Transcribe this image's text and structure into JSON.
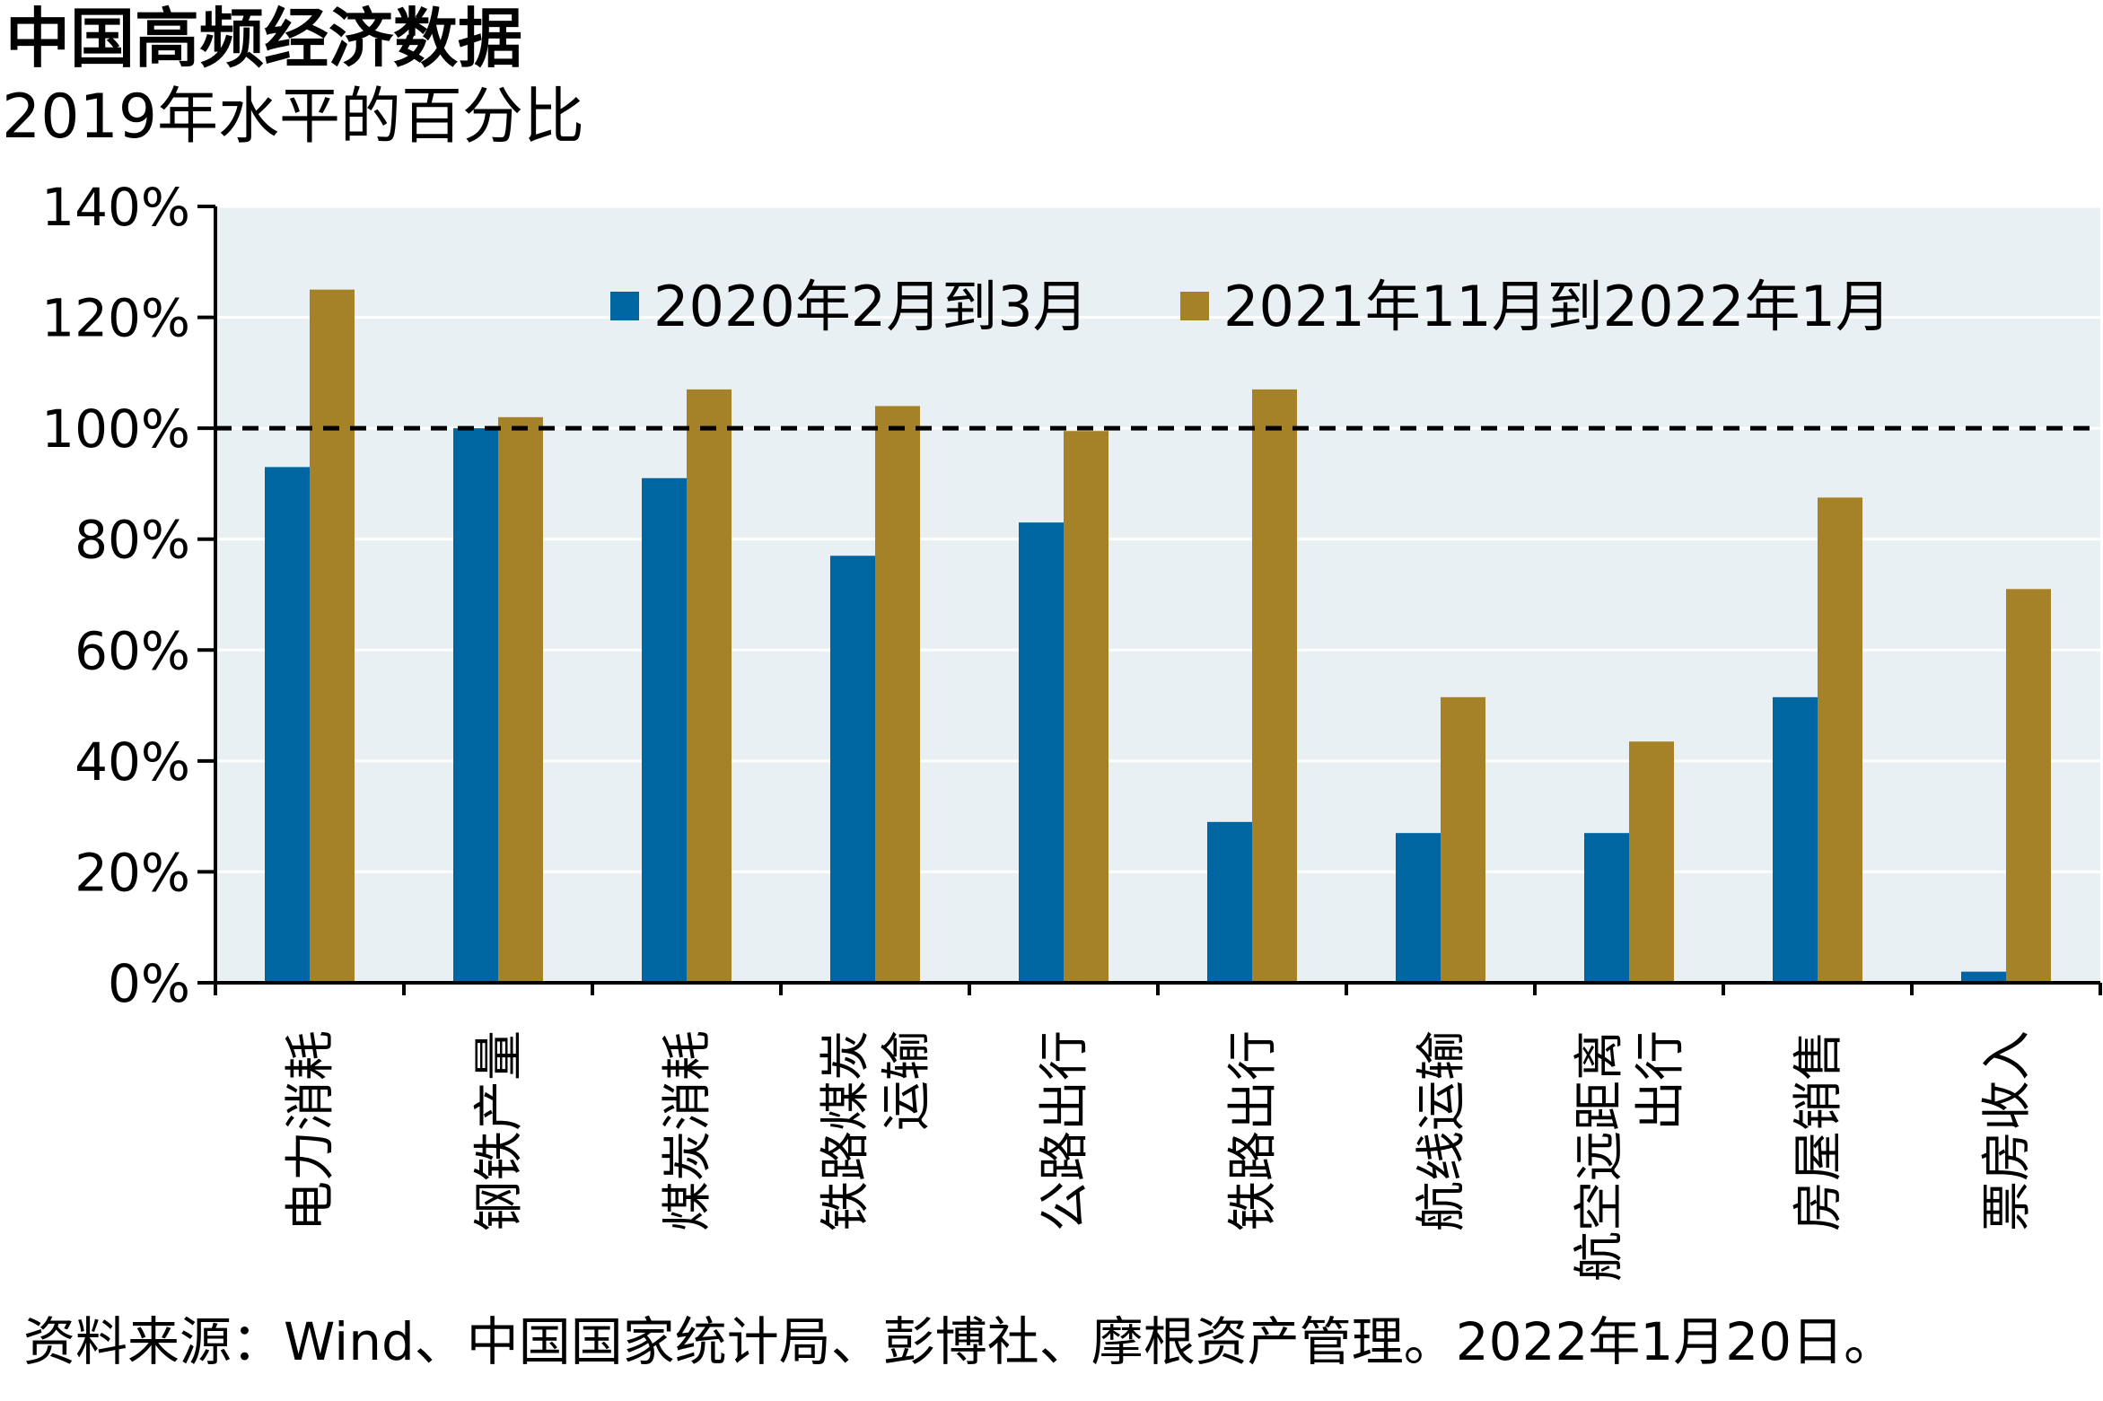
{
  "title": "中国高频经济数据",
  "subtitle": "2019年水平的百分比",
  "source": "资料来源：Wind、中国国家统计局、彭博社、摩根资产管理。2022年1月20日。",
  "colors": {
    "plot_bg": "#e8f0f3",
    "series_1": "#0066a1",
    "series_2": "#a58228",
    "reference_line": "#000000"
  },
  "chart_data": {
    "type": "bar",
    "categories": [
      [
        "电力消耗"
      ],
      [
        "钢铁产量"
      ],
      [
        "煤炭消耗"
      ],
      [
        "铁路煤炭",
        "运输"
      ],
      [
        "公路出行"
      ],
      [
        "铁路出行"
      ],
      [
        "航线运输"
      ],
      [
        "航空远距离",
        "出行"
      ],
      [
        "房屋销售"
      ],
      [
        "票房收入"
      ]
    ],
    "series": [
      {
        "name": "2020年2月到3月",
        "values": [
          93,
          100,
          91,
          77,
          83,
          29,
          27,
          27,
          51.5,
          2
        ]
      },
      {
        "name": "2021年11月到2022年1月",
        "values": [
          125,
          102,
          107,
          104,
          99.5,
          107,
          51.5,
          43.5,
          87.5,
          71
        ]
      }
    ],
    "ylim": [
      0,
      140
    ],
    "yticks": [
      "0%",
      "20%",
      "40%",
      "60%",
      "80%",
      "100%",
      "120%",
      "140%"
    ],
    "ytick_values": [
      0,
      20,
      40,
      60,
      80,
      100,
      120,
      140
    ],
    "reference_line": 100,
    "grid": true,
    "legend_position": "top"
  }
}
